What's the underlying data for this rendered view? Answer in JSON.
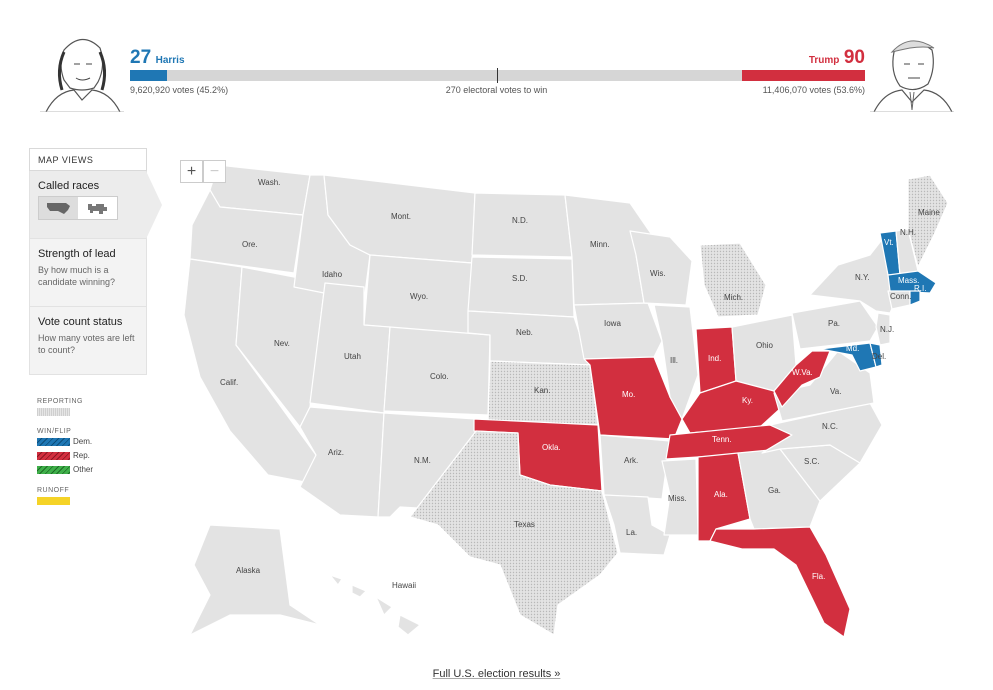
{
  "header": {
    "harris": {
      "electoral_votes": "27",
      "name": "Harris",
      "popular_votes": "9,620,920 votes (45.2%)",
      "ev_share": 0.05
    },
    "trump": {
      "electoral_votes": "90",
      "name": "Trump",
      "popular_votes": "11,406,070 votes (53.6%)",
      "ev_share": 0.167
    },
    "threshold": "270 electoral votes to win"
  },
  "sidebar": {
    "title": "MAP VIEWS",
    "items": [
      {
        "label": "Called races",
        "sub": ""
      },
      {
        "label": "Strength of lead",
        "sub": "By how much is a candidate winning?"
      },
      {
        "label": "Vote count status",
        "sub": "How many votes are left to count?"
      }
    ]
  },
  "legend": {
    "reporting": "REPORTING",
    "winflip": "WIN/FLIP",
    "dem": "Dem.",
    "rep": "Rep.",
    "other": "Other",
    "runoff": "RUNOFF",
    "colors": {
      "dem": "#1f77b4",
      "rep": "#d22f3f",
      "other": "#3fb04a",
      "runoff": "#f5d327",
      "reporting": "#d4d4d4",
      "none": "#e3e3e3"
    }
  },
  "zoom": {
    "in": "+",
    "out": "−"
  },
  "states": {
    "wash": "Wash.",
    "ore": "Ore.",
    "calif": "Calif.",
    "nev": "Nev.",
    "idaho": "Idaho",
    "mont": "Mont.",
    "wyo": "Wyo.",
    "utah": "Utah",
    "ariz": "Ariz.",
    "colo": "Colo.",
    "nm": "N.M.",
    "nd": "N.D.",
    "sd": "S.D.",
    "neb": "Neb.",
    "kan": "Kan.",
    "okla": "Okla.",
    "texas": "Texas",
    "minn": "Minn.",
    "iowa": "Iowa",
    "mo": "Mo.",
    "ark": "Ark.",
    "la": "La.",
    "wis": "Wis.",
    "ill": "Ill.",
    "mich": "Mich.",
    "ind": "Ind.",
    "ohio": "Ohio",
    "ky": "Ky.",
    "tenn": "Tenn.",
    "miss": "Miss.",
    "ala": "Ala.",
    "ga": "Ga.",
    "fla": "Fla.",
    "sc": "S.C.",
    "nc": "N.C.",
    "va": "Va.",
    "wva": "W.Va.",
    "pa": "Pa.",
    "ny": "N.Y.",
    "vt": "Vt.",
    "nh": "N.H.",
    "maine": "Maine",
    "mass": "Mass.",
    "conn": "Conn.",
    "ri": "R.I.",
    "nj": "N.J.",
    "del": "Del.",
    "md": "Md.",
    "alaska": "Alaska",
    "hawaii": "Hawaii"
  },
  "footer": {
    "link": "Full U.S. election results »"
  }
}
